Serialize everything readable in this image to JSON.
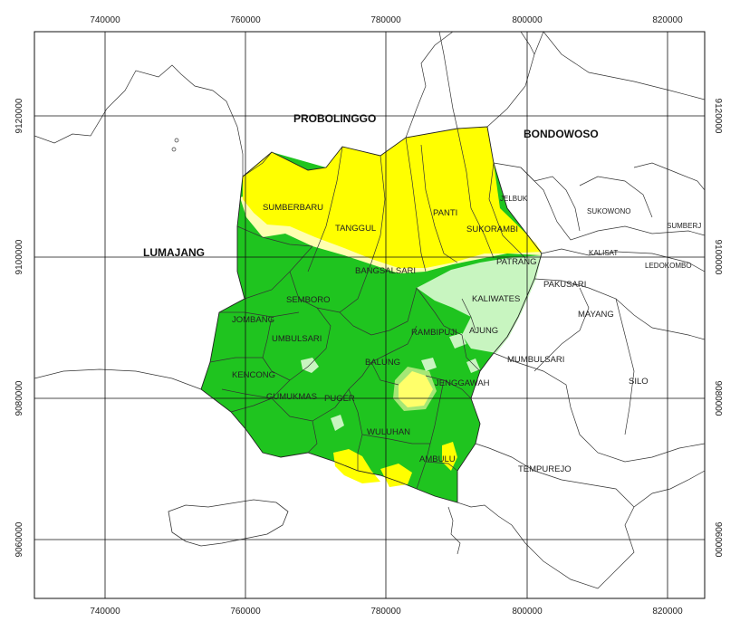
{
  "map": {
    "x_ticks": [
      "740000",
      "760000",
      "780000",
      "800000",
      "820000"
    ],
    "y_ticks": [
      "9120000",
      "9100000",
      "9080000",
      "9060000"
    ],
    "regions": {
      "probolinggo": "PROBOLINGGO",
      "bondowoso": "BONDOWOSO",
      "lumajang": "LUMAJANG"
    },
    "districts": {
      "sumberbaru": "SUMBERBARU",
      "tanggul": "TANGGUL",
      "panti": "PANTI",
      "sukorambi": "SUKORAMBI",
      "bangsalsari": "BANGSALSARI",
      "patrang": "PATRANG",
      "jelbuk": "JELBUK",
      "sukowono": "SUKOWONO",
      "sumberjambe": "SUMBERJ",
      "kalisat": "KALISAT",
      "ledokombo": "LEDOKOMBO",
      "pakusari": "PAKUSARI",
      "kaliwates": "KALIWATES",
      "semboro": "SEMBORO",
      "jombang": "JOMBANG",
      "umbulsari": "UMBULSARI",
      "rambipuji": "RAMBIPUJI",
      "ajung": "AJUNG",
      "mayang": "MAYANG",
      "mumbulsari": "MUMBULSARI",
      "silo": "SILO",
      "kencong": "KENCONG",
      "balung": "BALUNG",
      "jenggawah": "JENGGAWAH",
      "gumukmas": "GUMUKMAS",
      "puger": "PUGER",
      "wuluhan": "WULUHAN",
      "ambulu": "AMBULU",
      "tempurejo": "TEMPUREJO"
    },
    "colors": {
      "yellow_zone": "#ffff00",
      "light_yellow_zone": "#ffffb0",
      "light_green_zone": "#c8f5c0",
      "green_zone": "#1fc41f",
      "boundary": "#333333"
    }
  }
}
